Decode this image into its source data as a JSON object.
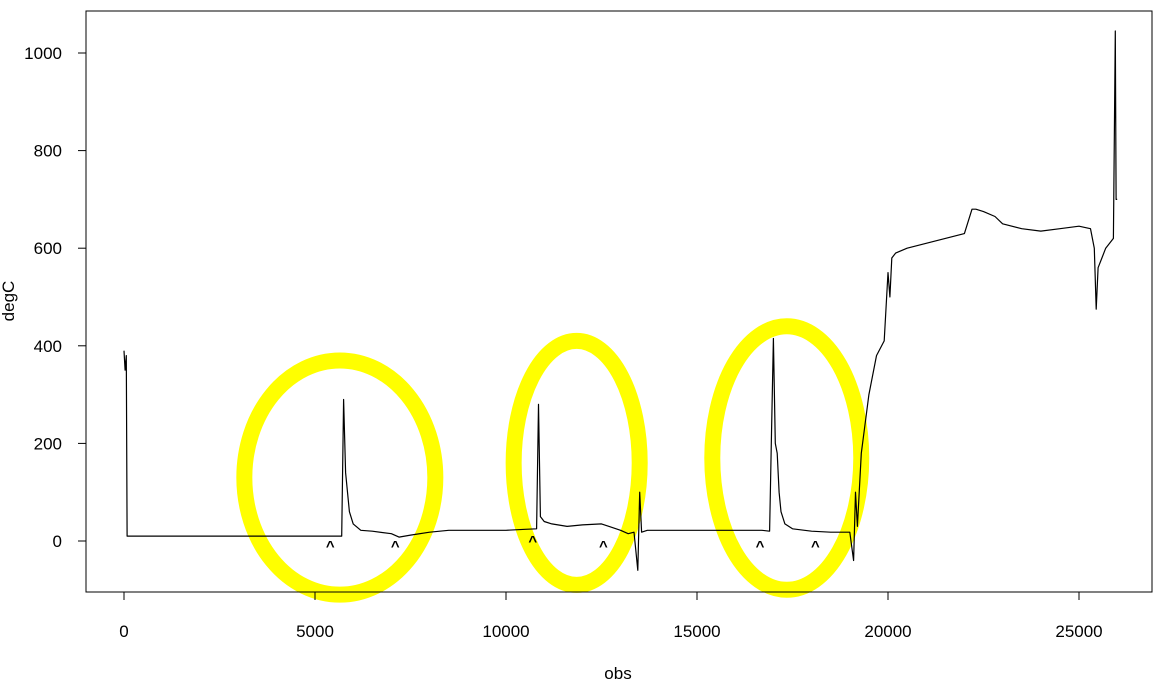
{
  "chart_data": {
    "type": "line",
    "title": "",
    "xlabel": "obs",
    "ylabel": "degC",
    "xlim": [
      0,
      26000
    ],
    "ylim": [
      -100,
      1050
    ],
    "x_ticks": [
      0,
      5000,
      10000,
      15000,
      20000,
      25000
    ],
    "x_tick_labels": [
      "0",
      "5000",
      "10000",
      "15000",
      "20000",
      "25000"
    ],
    "y_ticks": [
      0,
      200,
      400,
      600,
      800,
      1000
    ],
    "y_tick_labels": [
      "0",
      "200",
      "400",
      "600",
      "800",
      "1000"
    ],
    "grid": false,
    "series": [
      {
        "color": "#000000",
        "x": [
          0,
          30,
          60,
          80,
          100,
          120,
          5700,
          5750,
          5800,
          5900,
          6000,
          6200,
          6500,
          7000,
          7200,
          7500,
          8000,
          8500,
          9000,
          9500,
          10000,
          10500,
          10800,
          10850,
          10900,
          11000,
          11200,
          11600,
          12000,
          12500,
          12700,
          13000,
          13200,
          13350,
          13450,
          13500,
          13550,
          13700,
          14000,
          15000,
          16000,
          16700,
          16900,
          16950,
          17000,
          17050,
          17100,
          17150,
          17200,
          17300,
          17500,
          18000,
          18500,
          19000,
          19100,
          19150,
          19200,
          19300,
          19500,
          19700,
          19900,
          20000,
          20050,
          20100,
          20200,
          20500,
          21000,
          21500,
          22000,
          22200,
          22300,
          22500,
          22800,
          23000,
          23500,
          24000,
          24500,
          25000,
          25300,
          25400,
          25450,
          25500,
          25600,
          25700,
          25800,
          25900,
          25950,
          25970,
          26000
        ],
        "values": [
          390,
          350,
          380,
          10,
          10,
          10,
          10,
          290,
          140,
          60,
          35,
          22,
          20,
          15,
          8,
          12,
          18,
          22,
          22,
          22,
          22,
          24,
          25,
          280,
          50,
          40,
          35,
          30,
          33,
          35,
          30,
          22,
          15,
          18,
          -60,
          100,
          18,
          22,
          22,
          22,
          22,
          22,
          20,
          220,
          415,
          200,
          180,
          100,
          60,
          35,
          25,
          20,
          18,
          18,
          -40,
          100,
          30,
          180,
          300,
          380,
          410,
          550,
          500,
          580,
          590,
          600,
          610,
          620,
          630,
          680,
          680,
          675,
          665,
          650,
          640,
          635,
          640,
          645,
          640,
          600,
          475,
          560,
          580,
          600,
          610,
          620,
          1045,
          700,
          700
        ]
      }
    ],
    "markers": [
      {
        "label": "^",
        "x": 5400,
        "y": -20,
        "color": "#ff0000"
      },
      {
        "label": "^",
        "x": 7100,
        "y": -20,
        "color": "#ff0000"
      },
      {
        "label": "^",
        "x": 10700,
        "y": -10,
        "color": "#ff0000"
      },
      {
        "label": "^",
        "x": 12550,
        "y": -20,
        "color": "#ff0000"
      },
      {
        "label": "^",
        "x": 16650,
        "y": -20,
        "color": "#ff0000"
      },
      {
        "label": "^",
        "x": 18100,
        "y": -20,
        "color": "#ff0000"
      }
    ],
    "highlights": [
      {
        "color": "#ffff00",
        "cx": 5650,
        "cy": 130,
        "rx": 2500,
        "ry": 240
      },
      {
        "color": "#ffff00",
        "cx": 11850,
        "cy": 160,
        "rx": 1650,
        "ry": 250
      },
      {
        "color": "#ffff00",
        "cx": 17350,
        "cy": 170,
        "rx": 1950,
        "ry": 270
      }
    ]
  }
}
